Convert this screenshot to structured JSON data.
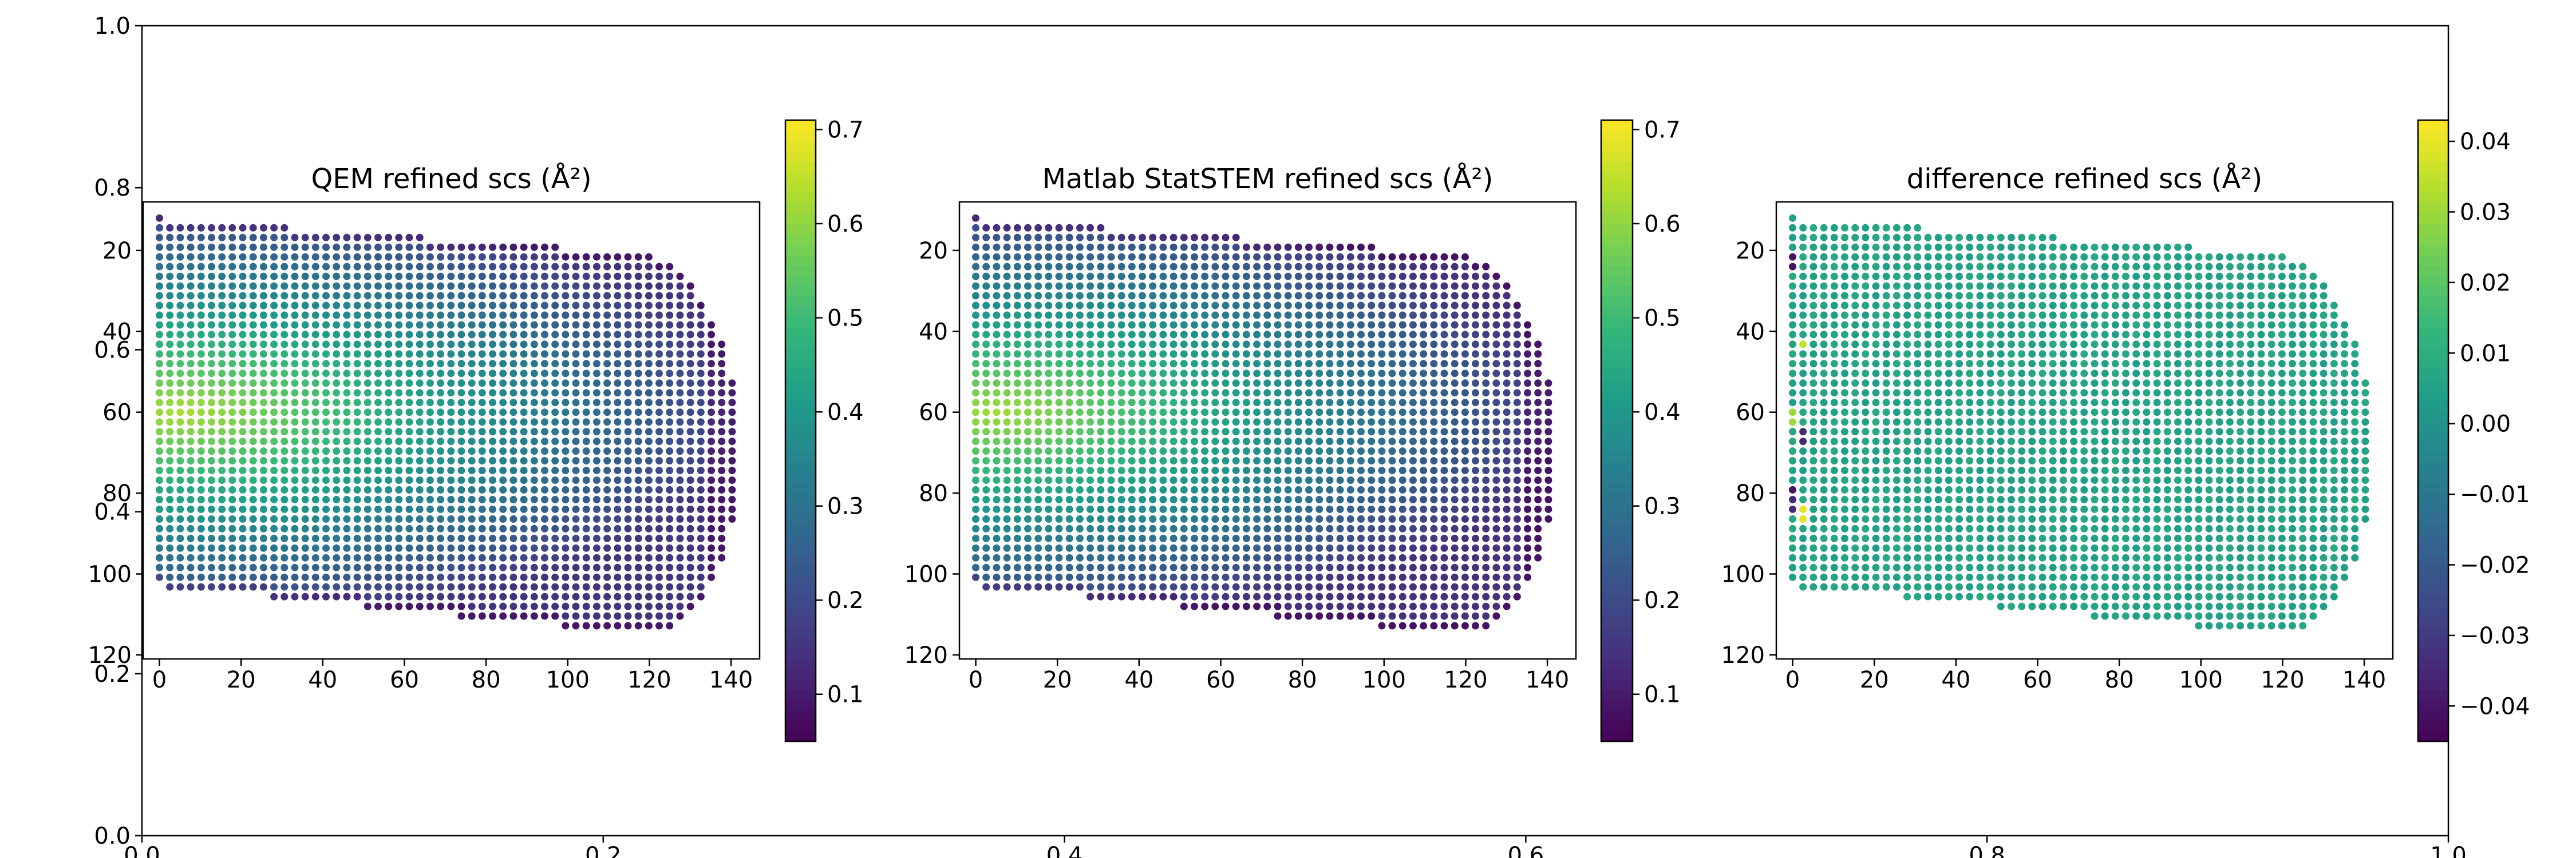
{
  "chart_data": [
    {
      "type": "axes",
      "role": "background-figure-axes",
      "xlim": [
        0.0,
        1.0
      ],
      "ylim": [
        0.0,
        1.0
      ],
      "xticks": [
        "0.0",
        "0.2",
        "0.4",
        "0.6",
        "0.8",
        "1.0"
      ],
      "yticks": [
        "0.0",
        "0.2",
        "0.4",
        "0.6",
        "0.8",
        "1.0"
      ]
    },
    {
      "type": "scatter",
      "title": "QEM refined scs (Å²)",
      "xlim": [
        -4,
        147
      ],
      "ylim": [
        121,
        8
      ],
      "xticks": [
        "0",
        "20",
        "40",
        "60",
        "80",
        "100",
        "120",
        "140"
      ],
      "yticks": [
        "20",
        "40",
        "60",
        "80",
        "100",
        "120"
      ],
      "colorbar": {
        "ticks": [
          "0.1",
          "0.2",
          "0.3",
          "0.4",
          "0.5",
          "0.6",
          "0.7"
        ],
        "vmin": 0.05,
        "vmax": 0.71,
        "colormap": "viridis"
      },
      "value_model": "center ≈ 0.62 near x≈5, y≈60, falling to ≈ 0.10 along the outer rim"
    },
    {
      "type": "scatter",
      "title": "Matlab StatSTEM refined scs (Å²)",
      "xlim": [
        -4,
        147
      ],
      "ylim": [
        121,
        8
      ],
      "xticks": [
        "0",
        "20",
        "40",
        "60",
        "80",
        "100",
        "120",
        "140"
      ],
      "yticks": [
        "20",
        "40",
        "60",
        "80",
        "100",
        "120"
      ],
      "colorbar": {
        "ticks": [
          "0.1",
          "0.2",
          "0.3",
          "0.4",
          "0.5",
          "0.6",
          "0.7"
        ],
        "vmin": 0.05,
        "vmax": 0.71,
        "colormap": "viridis"
      },
      "value_model": "nearly identical to the QEM panel"
    },
    {
      "type": "scatter",
      "title": "difference refined scs (Å²)",
      "xlim": [
        -4,
        147
      ],
      "ylim": [
        121,
        8
      ],
      "xticks": [
        "0",
        "20",
        "40",
        "60",
        "80",
        "100",
        "120",
        "140"
      ],
      "yticks": [
        "20",
        "40",
        "60",
        "80",
        "100",
        "120"
      ],
      "colorbar": {
        "ticks": [
          "−0.04",
          "−0.03",
          "−0.02",
          "−0.01",
          "0.00",
          "0.01",
          "0.02",
          "0.03",
          "0.04"
        ],
        "vmin": -0.045,
        "vmax": 0.043,
        "colormap": "viridis"
      },
      "value_model": "≈ 0.006 almost everywhere; a few edge columns near x≈0–3 reach ±0.04",
      "outliers": [
        {
          "x": 0,
          "y": 22,
          "v": -0.04
        },
        {
          "x": 3,
          "y": 43,
          "v": 0.035
        },
        {
          "x": 0,
          "y": 62,
          "v": 0.03
        },
        {
          "x": 3,
          "y": 65,
          "v": -0.035
        },
        {
          "x": 0,
          "y": 79,
          "v": -0.04
        },
        {
          "x": 3,
          "y": 86,
          "v": 0.04
        },
        {
          "x": 0,
          "y": 83,
          "v": -0.035
        }
      ]
    }
  ],
  "grid": {
    "x_start": 0,
    "x_step": 2.55,
    "y_start": 12,
    "y_step": 2.4,
    "top_edge_slope": 0.0733,
    "bottom_edge_slope": 0.1,
    "bottom_edge_offset": 103
  }
}
